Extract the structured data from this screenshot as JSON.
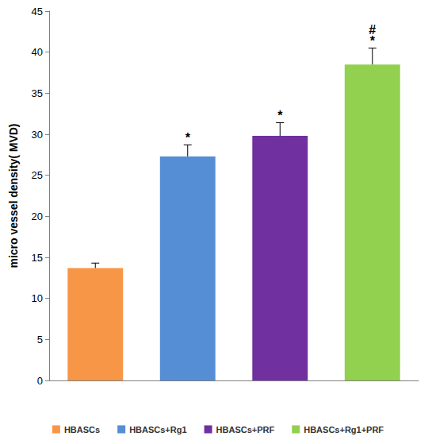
{
  "chart_data": {
    "type": "bar",
    "y_label": "micro vessel density( MVD)",
    "categories": [
      "HBASCs",
      "HBASCs+Rg1",
      "HBASCs+PRF",
      "HBASCs+Rg1+PRF"
    ],
    "values": [
      13.7,
      27.3,
      29.8,
      38.5
    ],
    "errors": [
      0.6,
      1.4,
      1.6,
      2.0
    ],
    "annotations": [
      [],
      [
        "*"
      ],
      [
        "*"
      ],
      [
        "#",
        "*"
      ]
    ],
    "colors": [
      "#f79646",
      "#558ed5",
      "#7030a0",
      "#92d050"
    ],
    "ylim": [
      0,
      45
    ],
    "yticks": [
      0,
      5,
      10,
      15,
      20,
      25,
      30,
      35,
      40,
      45
    ],
    "grid": false,
    "legend": "bottom",
    "tick_labels": "y"
  }
}
